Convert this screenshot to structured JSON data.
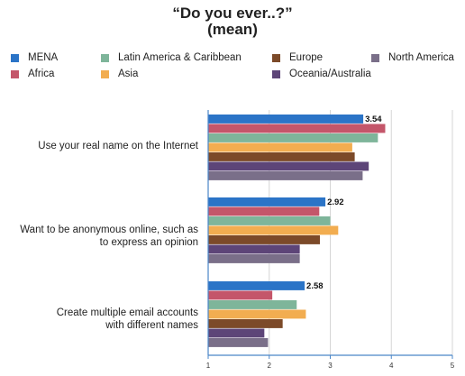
{
  "chart_data": {
    "type": "bar",
    "orientation": "horizontal",
    "title_lines": [
      "“Do you ever..?”",
      "(mean)"
    ],
    "categories": [
      "Use your real name on the Internet",
      "Want to be anonymous online, such as to express an opinion",
      "Create multiple email accounts with different names"
    ],
    "category_label_lines": [
      [
        "Use your real name on the Internet"
      ],
      [
        "Want to be anonymous online, such as",
        "to express an opinion"
      ],
      [
        "Create multiple email accounts",
        "with different names"
      ]
    ],
    "series": [
      {
        "name": "MENA",
        "color": "#2b74c7",
        "values": [
          3.54,
          2.92,
          2.58
        ]
      },
      {
        "name": "Africa",
        "color": "#c4566a",
        "values": [
          3.9,
          2.82,
          2.05
        ]
      },
      {
        "name": "Latin America & Caribbean",
        "color": "#7eb59a",
        "values": [
          3.78,
          3.0,
          2.45
        ]
      },
      {
        "name": "Asia",
        "color": "#f2ad50",
        "values": [
          3.36,
          3.13,
          2.6
        ]
      },
      {
        "name": "Europe",
        "color": "#7c4a29",
        "values": [
          3.4,
          2.83,
          2.22
        ]
      },
      {
        "name": "Oceania/Australia",
        "color": "#5d4578",
        "values": [
          3.63,
          2.5,
          1.92
        ]
      },
      {
        "name": "North America",
        "color": "#7a6f89",
        "values": [
          3.53,
          2.5,
          1.98
        ]
      }
    ],
    "value_labels": [
      "3.54",
      "2.92",
      "2.58"
    ],
    "xlim": [
      1,
      5
    ],
    "x_ticks": [
      1,
      2,
      3,
      4,
      5
    ],
    "grid": true,
    "legend_position": "top"
  }
}
